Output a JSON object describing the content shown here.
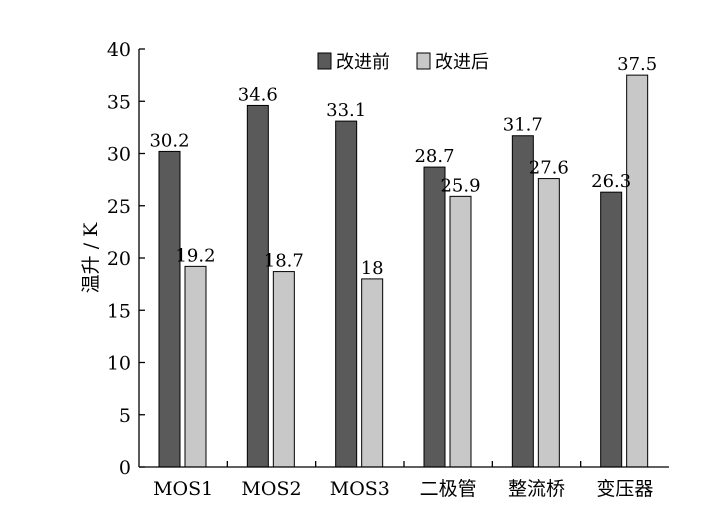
{
  "chart_data": {
    "type": "bar",
    "ylabel": "温升 / K",
    "ylim": [
      0,
      40
    ],
    "yticks": [
      0,
      5,
      10,
      15,
      20,
      25,
      30,
      35,
      40
    ],
    "categories": [
      "MOS1",
      "MOS2",
      "MOS3",
      "二极管",
      "整流桥",
      "变压器"
    ],
    "series": [
      {
        "name": "改进前",
        "values": [
          30.2,
          34.6,
          33.1,
          28.7,
          31.7,
          26.3
        ],
        "labels": [
          "30.2",
          "34.6",
          "33.1",
          "28.7",
          "31.7",
          "26.3"
        ],
        "color": "#5a5a5a"
      },
      {
        "name": "改进后",
        "values": [
          19.2,
          18.7,
          18,
          25.9,
          27.6,
          37.5
        ],
        "labels": [
          "19.2",
          "18.7",
          "18",
          "25.9",
          "27.6",
          "37.5"
        ],
        "color": "#c8c8c8"
      }
    ],
    "legend_position": "top",
    "grid": false
  }
}
